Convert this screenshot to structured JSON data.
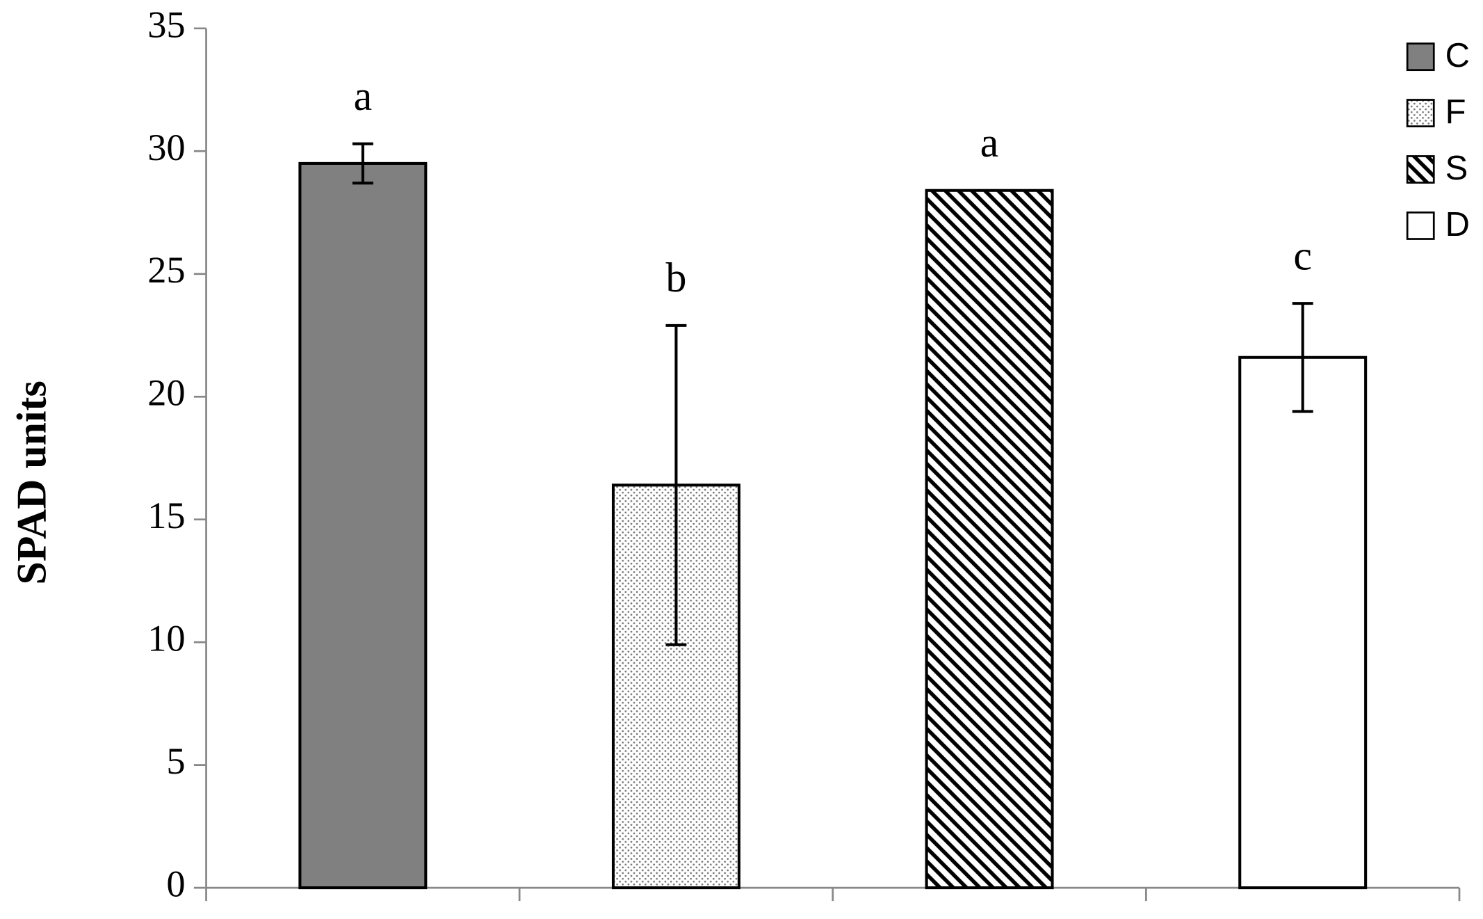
{
  "chart_data": {
    "type": "bar",
    "ylabel": "SPAD units",
    "categories": [
      null,
      null,
      null,
      null
    ],
    "series": [
      {
        "name": "C",
        "color": "#808080",
        "pattern": "solid",
        "values": [
          29.5,
          null,
          null,
          null
        ],
        "errors": [
          0.8,
          null,
          null,
          null
        ],
        "annotations": [
          "a",
          null,
          null,
          null
        ]
      },
      {
        "name": "F",
        "color": "#ffffff",
        "pattern": "dots",
        "values": [
          null,
          16.4,
          null,
          null
        ],
        "errors": [
          null,
          6.5,
          null,
          null
        ],
        "annotations": [
          null,
          "b",
          null,
          null
        ]
      },
      {
        "name": "S",
        "color": "#ffffff",
        "pattern": "hatch",
        "values": [
          null,
          null,
          28.4,
          null
        ],
        "errors": [
          null,
          null,
          null,
          null
        ],
        "annotations": [
          null,
          null,
          "a",
          null
        ]
      },
      {
        "name": "D",
        "color": "#ffffff",
        "pattern": "solid",
        "values": [
          null,
          null,
          null,
          21.6
        ],
        "errors": [
          null,
          null,
          null,
          2.2
        ],
        "annotations": [
          null,
          null,
          null,
          "c"
        ]
      }
    ],
    "ylim": [
      0,
      35
    ],
    "yticks": [
      0,
      5,
      10,
      15,
      20,
      25,
      30,
      35
    ],
    "grid": false,
    "legend": "top-right"
  }
}
